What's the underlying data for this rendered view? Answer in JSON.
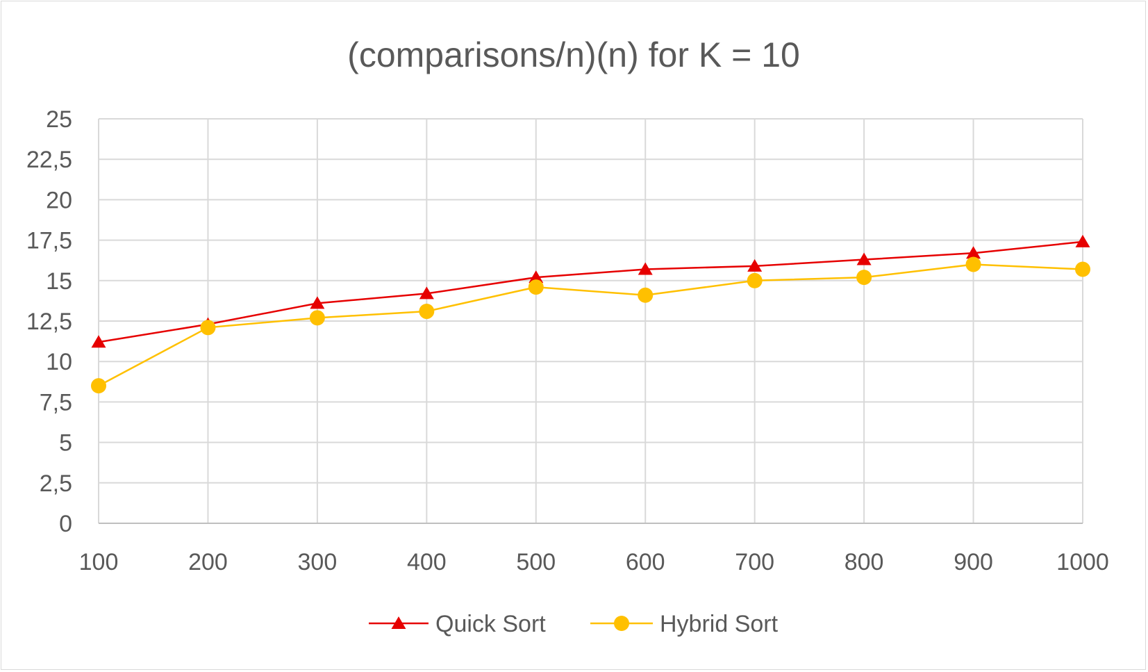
{
  "chart_data": {
    "type": "line",
    "title": "(comparisons/n)(n) for K = 10",
    "xlabel": "",
    "ylabel": "",
    "x": [
      100,
      200,
      300,
      400,
      500,
      600,
      700,
      800,
      900,
      1000
    ],
    "x_tick_labels": [
      "100",
      "200",
      "300",
      "400",
      "500",
      "600",
      "700",
      "800",
      "900",
      "1000"
    ],
    "ylim": [
      0,
      25
    ],
    "y_tick_labels": [
      "0",
      "2,5",
      "5",
      "7,5",
      "10",
      "12,5",
      "15",
      "17,5",
      "20",
      "22,5",
      "25"
    ],
    "y_ticks": [
      0,
      2.5,
      5,
      7.5,
      10,
      12.5,
      15,
      17.5,
      20,
      22.5,
      25
    ],
    "grid": true,
    "legend_position": "bottom",
    "series": [
      {
        "name": "Quick Sort",
        "color": "#e60000",
        "marker": "triangle",
        "values": [
          11.2,
          12.3,
          13.6,
          14.2,
          15.2,
          15.7,
          15.9,
          16.3,
          16.7,
          17.4
        ]
      },
      {
        "name": "Hybrid Sort",
        "color": "#ffc000",
        "marker": "circle",
        "values": [
          8.5,
          12.1,
          12.7,
          13.1,
          14.6,
          14.1,
          15.0,
          15.2,
          16.0,
          15.7
        ]
      }
    ]
  }
}
